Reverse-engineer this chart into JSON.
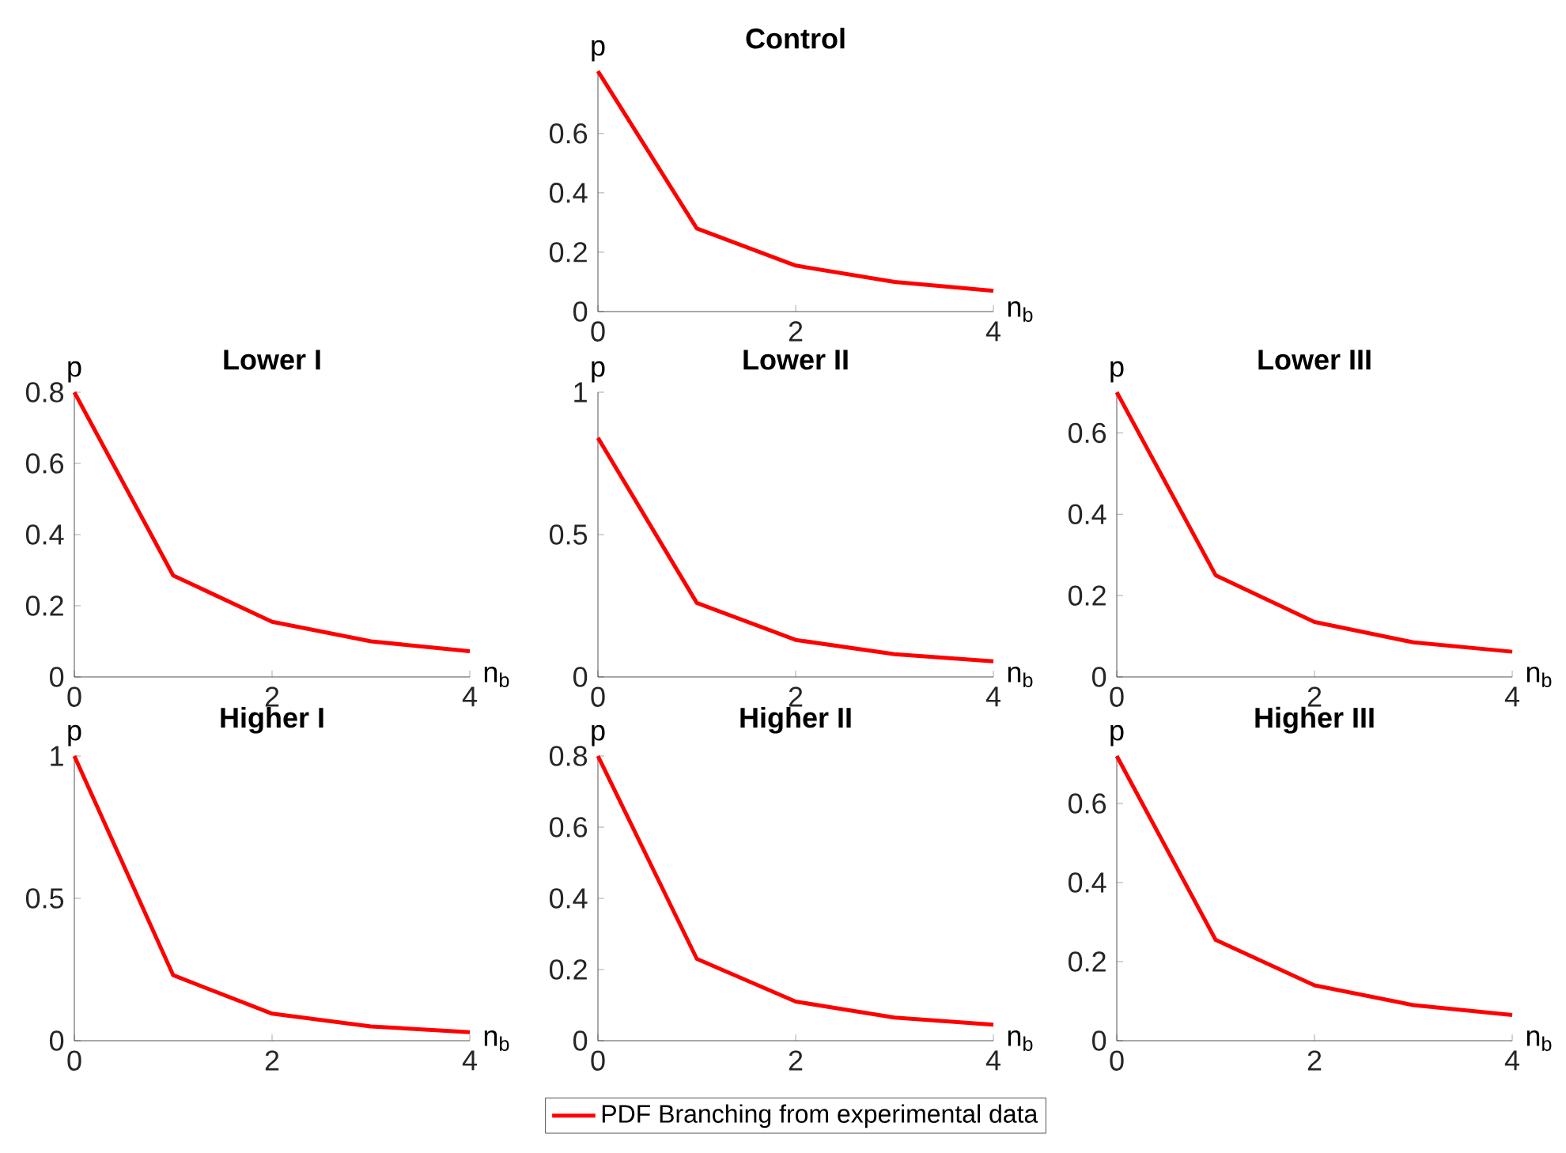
{
  "chart_data": [
    {
      "type": "line",
      "title": "Control",
      "xlabel": "n$_{b}$",
      "ylabel": "p",
      "x": [
        0,
        1,
        2,
        3,
        4
      ],
      "xlim": [
        0,
        4
      ],
      "xticks": [
        0,
        2,
        4
      ],
      "ylim": [
        0,
        0.81
      ],
      "yticks": [
        0,
        0.2,
        0.4,
        0.6
      ],
      "grid": false,
      "legend": false,
      "series": [
        {
          "color": "#ff0000",
          "values": [
            0.81,
            0.28,
            0.155,
            0.1,
            0.07
          ]
        }
      ]
    },
    {
      "type": "line",
      "title": "Lower I",
      "xlabel": "n$_{b}$",
      "ylabel": "p",
      "x": [
        0,
        1,
        2,
        3,
        4
      ],
      "xlim": [
        0,
        4
      ],
      "xticks": [
        0,
        2,
        4
      ],
      "ylim": [
        0,
        0.8
      ],
      "yticks": [
        0,
        0.2,
        0.4,
        0.6,
        0.8
      ],
      "grid": false,
      "legend": false,
      "series": [
        {
          "color": "#ff0000",
          "values": [
            0.8,
            0.285,
            0.155,
            0.1,
            0.072
          ]
        }
      ]
    },
    {
      "type": "line",
      "title": "Lower II",
      "xlabel": "n$_{b}$",
      "ylabel": "p",
      "x": [
        0,
        1,
        2,
        3,
        4
      ],
      "xlim": [
        0,
        4
      ],
      "xticks": [
        0,
        2,
        4
      ],
      "ylim": [
        0,
        1
      ],
      "yticks": [
        0,
        0.5,
        1
      ],
      "grid": false,
      "legend": false,
      "series": [
        {
          "color": "#ff0000",
          "values": [
            0.84,
            0.26,
            0.13,
            0.08,
            0.055
          ]
        }
      ]
    },
    {
      "type": "line",
      "title": "Lower III",
      "xlabel": "n$_{b}$",
      "ylabel": "p",
      "x": [
        0,
        1,
        2,
        3,
        4
      ],
      "xlim": [
        0,
        4
      ],
      "xticks": [
        0,
        2,
        4
      ],
      "ylim": [
        0,
        0.7
      ],
      "yticks": [
        0,
        0.2,
        0.4,
        0.6
      ],
      "grid": false,
      "legend": false,
      "series": [
        {
          "color": "#ff0000",
          "values": [
            0.7,
            0.25,
            0.135,
            0.085,
            0.062
          ]
        }
      ]
    },
    {
      "type": "line",
      "title": "Higher I",
      "xlabel": "n$_{b}$",
      "ylabel": "p",
      "x": [
        0,
        1,
        2,
        3,
        4
      ],
      "xlim": [
        0,
        4
      ],
      "xticks": [
        0,
        2,
        4
      ],
      "ylim": [
        0,
        1
      ],
      "yticks": [
        0,
        0.5,
        1
      ],
      "grid": false,
      "legend": false,
      "series": [
        {
          "color": "#ff0000",
          "values": [
            1.0,
            0.23,
            0.095,
            0.05,
            0.03
          ]
        }
      ]
    },
    {
      "type": "line",
      "title": "Higher II",
      "xlabel": "n$_{b}$",
      "ylabel": "p",
      "x": [
        0,
        1,
        2,
        3,
        4
      ],
      "xlim": [
        0,
        4
      ],
      "xticks": [
        0,
        2,
        4
      ],
      "ylim": [
        0,
        0.8
      ],
      "yticks": [
        0,
        0.2,
        0.4,
        0.6,
        0.8
      ],
      "grid": false,
      "legend": "bottom",
      "series": [
        {
          "name": "PDF Branching from experimental data",
          "color": "#ff0000",
          "values": [
            0.8,
            0.23,
            0.11,
            0.065,
            0.045
          ]
        }
      ]
    },
    {
      "type": "line",
      "title": "Higher III",
      "xlabel": "n$_{b}$",
      "ylabel": "p",
      "x": [
        0,
        1,
        2,
        3,
        4
      ],
      "xlim": [
        0,
        4
      ],
      "xticks": [
        0,
        2,
        4
      ],
      "ylim": [
        0,
        0.72
      ],
      "yticks": [
        0,
        0.2,
        0.4,
        0.6
      ],
      "grid": false,
      "legend": false,
      "series": [
        {
          "color": "#ff0000",
          "values": [
            0.72,
            0.255,
            0.14,
            0.09,
            0.065
          ]
        }
      ]
    }
  ]
}
